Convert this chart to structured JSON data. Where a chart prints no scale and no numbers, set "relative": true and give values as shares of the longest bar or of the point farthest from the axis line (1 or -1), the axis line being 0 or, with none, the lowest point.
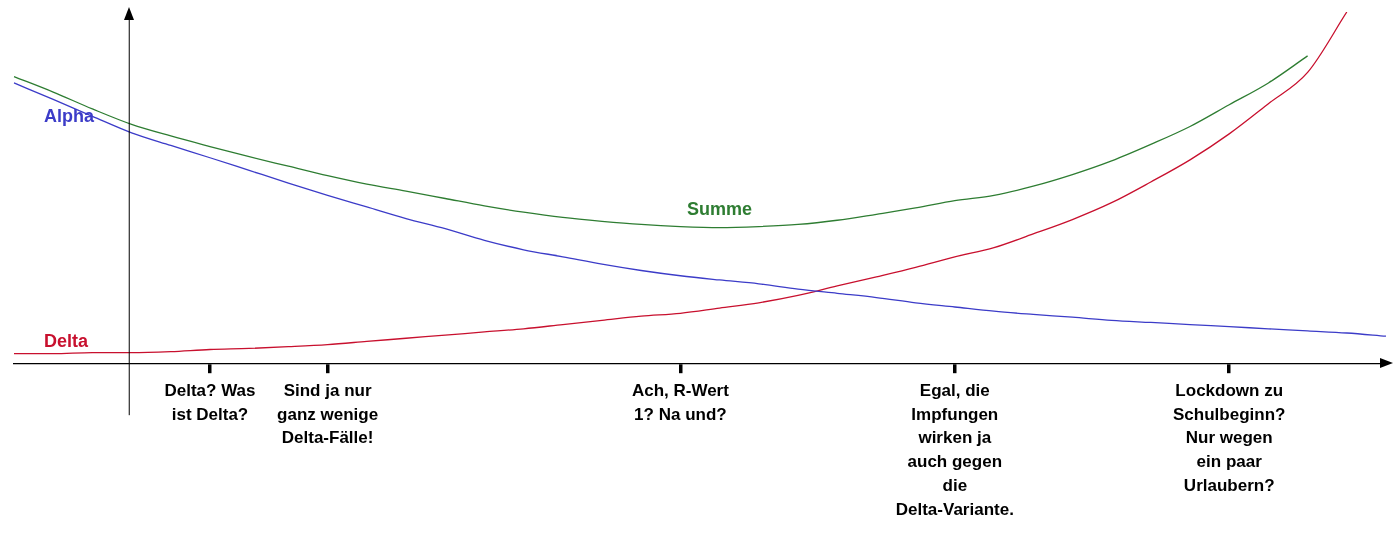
{
  "chart_data": {
    "type": "line",
    "relative": true,
    "marker": "none",
    "categories": [
      null,
      null,
      null,
      null,
      null,
      "Delta? Was ist Delta?",
      null,
      null,
      "Sind ja nur ganz wenige Delta-Fälle!",
      null,
      null,
      null,
      null,
      null,
      null,
      null,
      null,
      "Ach, R-Wert 1? Na und?",
      null,
      null,
      null,
      null,
      null,
      null,
      "Egal, die Impfungen wirken ja auch gegen die Delta-Variante.",
      null,
      null,
      null,
      null,
      null,
      null,
      "Lockdown zu Schulbeginn? Nur wegen ein paar Urlaubern?",
      null,
      null,
      null,
      null
    ],
    "series": [
      {
        "name": "Alpha",
        "color": "#3c3cc8",
        "values": [
          0.798,
          0.751,
          0.703,
          0.656,
          0.62,
          0.585,
          0.549,
          0.513,
          0.478,
          0.445,
          0.412,
          0.383,
          0.35,
          0.323,
          0.303,
          0.282,
          0.264,
          0.249,
          0.237,
          0.226,
          0.211,
          0.199,
          0.187,
          0.172,
          0.16,
          0.148,
          0.139,
          0.131,
          0.122,
          0.116,
          0.11,
          0.104,
          0.098,
          0.092,
          0.086,
          0.077
        ]
      },
      {
        "name": "Summe",
        "color": "#2e7d32",
        "values": [
          0.816,
          0.772,
          0.724,
          0.68,
          0.647,
          0.617,
          0.588,
          0.561,
          0.534,
          0.51,
          0.49,
          0.469,
          0.448,
          0.43,
          0.415,
          0.404,
          0.395,
          0.389,
          0.386,
          0.389,
          0.395,
          0.407,
          0.424,
          0.442,
          0.463,
          0.478,
          0.504,
          0.537,
          0.576,
          0.623,
          0.674,
          0.736,
          0.798,
          0.875,
          null,
          null
        ]
      },
      {
        "name": "Delta",
        "color": "#c8102e",
        "values": [
          0.027,
          0.027,
          0.03,
          0.03,
          0.033,
          0.039,
          0.042,
          0.047,
          0.053,
          0.062,
          0.071,
          0.08,
          0.089,
          0.098,
          0.11,
          0.122,
          0.134,
          0.142,
          0.157,
          0.172,
          0.193,
          0.22,
          0.246,
          0.273,
          0.303,
          0.329,
          0.368,
          0.409,
          0.457,
          0.516,
          0.579,
          0.653,
          0.739,
          0.828,
          1,
          null
        ]
      }
    ]
  }
}
